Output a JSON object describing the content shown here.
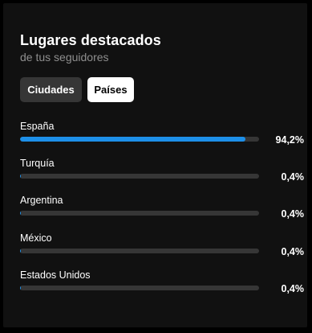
{
  "header": {
    "title": "Lugares destacados",
    "subtitle": "de tus seguidores"
  },
  "tabs": [
    {
      "label": "Ciudades",
      "selected": false
    },
    {
      "label": "Países",
      "selected": true
    }
  ],
  "locations": [
    {
      "name": "España",
      "percent_label": "94,2%",
      "fraction": 0.942
    },
    {
      "name": "Turquía",
      "percent_label": "0,4%",
      "fraction": 0.004
    },
    {
      "name": "Argentina",
      "percent_label": "0,4%",
      "fraction": 0.004
    },
    {
      "name": "México",
      "percent_label": "0,4%",
      "fraction": 0.004
    },
    {
      "name": "Estados Unidos",
      "percent_label": "0,4%",
      "fraction": 0.004
    }
  ],
  "colors": {
    "bar_fill": "#1d8fe8",
    "bar_track": "#363636",
    "background": "#111111"
  }
}
